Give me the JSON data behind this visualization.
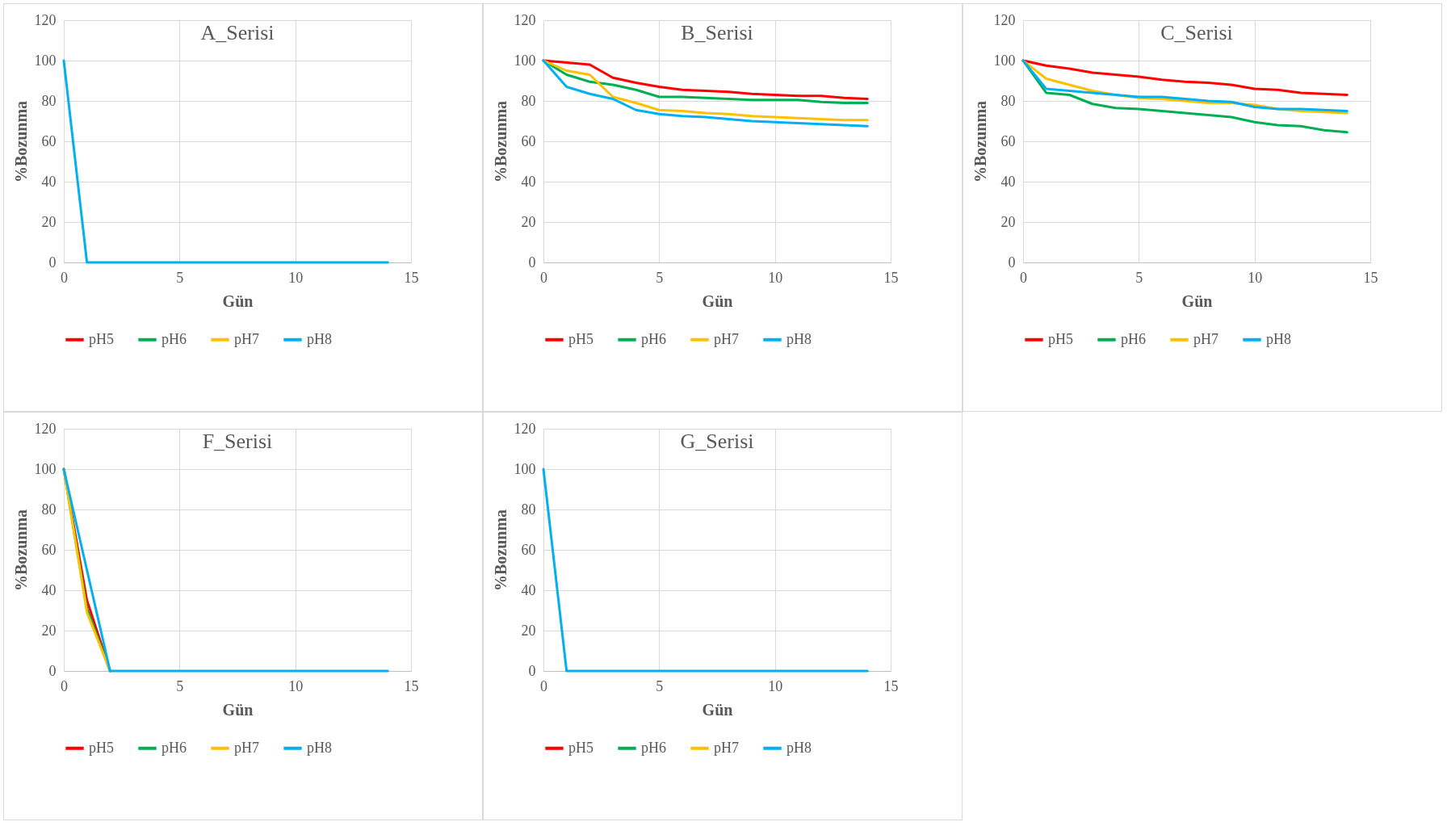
{
  "chart_data": [
    {
      "type": "line",
      "title": "A_Serisi",
      "xlabel": "Gün",
      "ylabel": "%Bozunma",
      "x": [
        0,
        1,
        2,
        3,
        4,
        5,
        6,
        7,
        8,
        9,
        10,
        11,
        12,
        13,
        14
      ],
      "xlim": [
        0,
        15
      ],
      "xticks": [
        0,
        5,
        10,
        15
      ],
      "ylim": [
        0,
        120
      ],
      "yticks": [
        0,
        20,
        40,
        60,
        80,
        100,
        120
      ],
      "grid": true,
      "legend": "bottom",
      "series": [
        {
          "name": "pH5",
          "color": "#ff0000",
          "values": [
            null,
            null,
            null,
            null,
            null,
            null,
            null,
            null,
            null,
            null,
            null,
            null,
            null,
            null,
            null
          ]
        },
        {
          "name": "pH6",
          "color": "#00b050",
          "values": [
            null,
            null,
            null,
            null,
            null,
            null,
            null,
            null,
            null,
            null,
            null,
            null,
            null,
            null,
            null
          ]
        },
        {
          "name": "pH7",
          "color": "#ffc000",
          "values": [
            null,
            null,
            null,
            null,
            null,
            null,
            null,
            null,
            null,
            null,
            null,
            null,
            null,
            null,
            null
          ]
        },
        {
          "name": "pH8",
          "color": "#00b0f0",
          "values": [
            100,
            0,
            0,
            0,
            0,
            0,
            0,
            0,
            0,
            0,
            0,
            0,
            0,
            0,
            0
          ]
        }
      ]
    },
    {
      "type": "line",
      "title": "B_Serisi",
      "xlabel": "Gün",
      "ylabel": "%Bozunma",
      "x": [
        0,
        1,
        2,
        3,
        4,
        5,
        6,
        7,
        8,
        9,
        10,
        11,
        12,
        13,
        14
      ],
      "xlim": [
        0,
        15
      ],
      "xticks": [
        0,
        5,
        10,
        15
      ],
      "ylim": [
        0,
        120
      ],
      "yticks": [
        0,
        20,
        40,
        60,
        80,
        100,
        120
      ],
      "grid": true,
      "legend": "bottom",
      "series": [
        {
          "name": "pH5",
          "color": "#ff0000",
          "values": [
            100,
            99,
            98,
            91.5,
            89,
            87,
            85.5,
            85,
            84.5,
            83.5,
            83,
            82.5,
            82.5,
            81.5,
            81
          ]
        },
        {
          "name": "pH6",
          "color": "#00b050",
          "values": [
            100,
            93,
            89.5,
            88,
            85.5,
            82,
            82,
            81.5,
            81,
            80.5,
            80.5,
            80.5,
            79.5,
            79,
            79
          ]
        },
        {
          "name": "pH7",
          "color": "#ffc000",
          "values": [
            100,
            95,
            93,
            82,
            79,
            75.5,
            75,
            74,
            73.5,
            72.5,
            72,
            71.5,
            71,
            70.5,
            70.5
          ]
        },
        {
          "name": "pH8",
          "color": "#00b0f0",
          "values": [
            100,
            87,
            83.5,
            81,
            75.5,
            73.5,
            72.5,
            72,
            71,
            70,
            69.5,
            69,
            68.5,
            68,
            67.5
          ]
        }
      ]
    },
    {
      "type": "line",
      "title": "C_Serisi",
      "xlabel": "Gün",
      "ylabel": "%Bozunma",
      "x": [
        0,
        1,
        2,
        3,
        4,
        5,
        6,
        7,
        8,
        9,
        10,
        11,
        12,
        13,
        14
      ],
      "xlim": [
        0,
        15
      ],
      "xticks": [
        0,
        5,
        10,
        15
      ],
      "ylim": [
        0,
        120
      ],
      "yticks": [
        0,
        20,
        40,
        60,
        80,
        100,
        120
      ],
      "grid": true,
      "legend": "bottom",
      "series": [
        {
          "name": "pH5",
          "color": "#ff0000",
          "values": [
            100,
            97.5,
            96,
            94,
            93,
            92,
            90.5,
            89.5,
            89,
            88,
            86,
            85.5,
            84,
            83.5,
            83
          ]
        },
        {
          "name": "pH6",
          "color": "#00b050",
          "values": [
            100,
            84,
            83,
            78.5,
            76.5,
            76,
            75,
            74,
            73,
            72,
            69.5,
            68,
            67.5,
            65.5,
            64.5
          ]
        },
        {
          "name": "pH7",
          "color": "#ffc000",
          "values": [
            100,
            91,
            88,
            85,
            83,
            81.5,
            81,
            80,
            79,
            79,
            78,
            76,
            75,
            74.5,
            74
          ]
        },
        {
          "name": "pH8",
          "color": "#00b0f0",
          "values": [
            100,
            86,
            85,
            84,
            83,
            82,
            82,
            81,
            80,
            79.5,
            77,
            76,
            76,
            75.5,
            75
          ]
        }
      ]
    },
    {
      "type": "line",
      "title": "F_Serisi",
      "xlabel": "Gün",
      "ylabel": "%Bozunma",
      "x": [
        0,
        1,
        2,
        3,
        4,
        5,
        6,
        7,
        8,
        9,
        10,
        11,
        12,
        13,
        14
      ],
      "xlim": [
        0,
        15
      ],
      "xticks": [
        0,
        5,
        10,
        15
      ],
      "ylim": [
        0,
        120
      ],
      "yticks": [
        0,
        20,
        40,
        60,
        80,
        100,
        120
      ],
      "grid": true,
      "legend": "bottom",
      "series": [
        {
          "name": "pH5",
          "color": "#ff0000",
          "values": [
            100,
            35,
            0,
            null,
            null,
            null,
            null,
            null,
            null,
            null,
            null,
            null,
            null,
            null,
            null
          ]
        },
        {
          "name": "pH6",
          "color": "#00b050",
          "values": [
            100,
            31,
            0,
            null,
            null,
            null,
            null,
            null,
            null,
            null,
            null,
            null,
            null,
            null,
            null
          ]
        },
        {
          "name": "pH7",
          "color": "#ffc000",
          "values": [
            100,
            29,
            0,
            null,
            null,
            null,
            null,
            null,
            null,
            null,
            null,
            null,
            null,
            null,
            null
          ]
        },
        {
          "name": "pH8",
          "color": "#00b0f0",
          "values": [
            100,
            50,
            0,
            0,
            0,
            0,
            0,
            0,
            0,
            0,
            0,
            0,
            0,
            0,
            0
          ]
        }
      ]
    },
    {
      "type": "line",
      "title": "G_Serisi",
      "xlabel": "Gün",
      "ylabel": "%Bozunma",
      "x": [
        0,
        1,
        2,
        3,
        4,
        5,
        6,
        7,
        8,
        9,
        10,
        11,
        12,
        13,
        14
      ],
      "xlim": [
        0,
        15
      ],
      "xticks": [
        0,
        5,
        10,
        15
      ],
      "ylim": [
        0,
        120
      ],
      "yticks": [
        0,
        20,
        40,
        60,
        80,
        100,
        120
      ],
      "grid": true,
      "legend": "bottom",
      "series": [
        {
          "name": "pH5",
          "color": "#ff0000",
          "values": [
            null,
            null,
            null,
            null,
            null,
            null,
            null,
            null,
            null,
            null,
            null,
            null,
            null,
            null,
            null
          ]
        },
        {
          "name": "pH6",
          "color": "#00b050",
          "values": [
            null,
            null,
            null,
            null,
            null,
            null,
            null,
            null,
            null,
            null,
            null,
            null,
            null,
            null,
            null
          ]
        },
        {
          "name": "pH7",
          "color": "#ffc000",
          "values": [
            null,
            null,
            null,
            null,
            null,
            null,
            null,
            null,
            null,
            null,
            null,
            null,
            null,
            null,
            null
          ]
        },
        {
          "name": "pH8",
          "color": "#00b0f0",
          "values": [
            100,
            0,
            0,
            0,
            0,
            0,
            0,
            0,
            0,
            0,
            0,
            0,
            0,
            0,
            0
          ]
        }
      ]
    }
  ]
}
